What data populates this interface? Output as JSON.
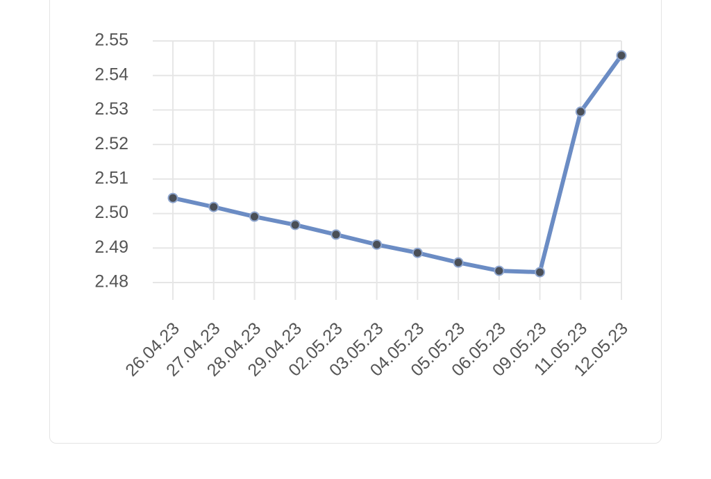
{
  "chart_data": {
    "type": "line",
    "categories": [
      "26.04.23",
      "27.04.23",
      "28.04.23",
      "29.04.23",
      "02.05.23",
      "03.05.23",
      "04.05.23",
      "05.05.23",
      "06.05.23",
      "09.05.23",
      "11.05.23",
      "12.05.23"
    ],
    "series": [
      {
        "color": "#6b8cc4",
        "values": [
          2.5045,
          2.5019,
          2.4991,
          2.4967,
          2.4939,
          2.491,
          2.4886,
          2.4858,
          2.4834,
          2.483,
          2.5295,
          2.5458
        ]
      }
    ],
    "ylim": [
      2.48,
      2.55
    ],
    "yticks": [
      2.48,
      2.49,
      {
        "value": 2.5,
        "label": "2.50"
      },
      2.51,
      2.52,
      2.53,
      2.54,
      2.55
    ],
    "grid": true
  }
}
